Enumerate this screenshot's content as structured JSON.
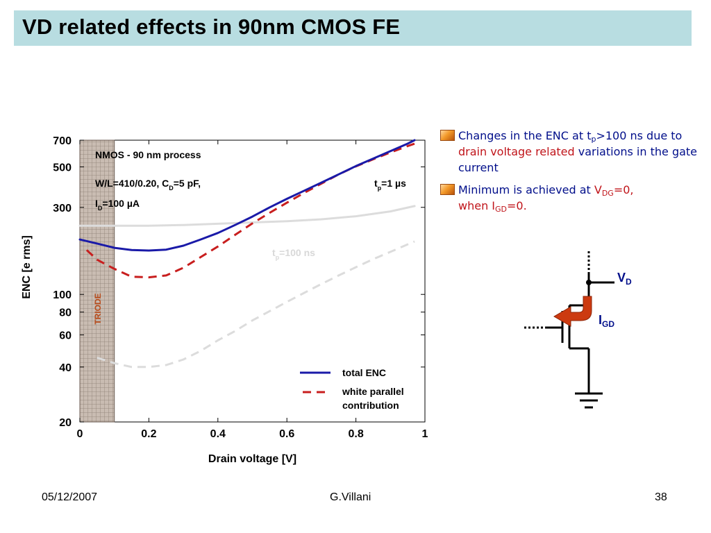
{
  "slide_title": "VD related effects in 90nm CMOS FE",
  "bullets": [
    {
      "p1": "Changes in the ENC at t",
      "p1_sub": "p",
      "p1_rest": ">100 ns due to ",
      "p1_red": "drain voltage related",
      "p1_tail": " variations in the gate current"
    },
    {
      "p1": "Minimum is achieved at ",
      "r1": "V",
      "r1_sub": "DG",
      "r1_rest": "=0,",
      "r2": "when I",
      "r2_sub": "GD",
      "r2_rest": "=0."
    }
  ],
  "chart_data": {
    "type": "line",
    "xlabel": "Drain voltage [V]",
    "ylabel": "ENC [e rms]",
    "xlim": [
      0,
      1
    ],
    "ylim": [
      20,
      700
    ],
    "yscale": "log",
    "x_ticks": [
      0,
      0.2,
      0.4,
      0.6,
      0.8,
      1
    ],
    "x_tick_labels": [
      "0",
      "0.2",
      "0.4",
      "0.6",
      "0.8",
      "1"
    ],
    "y_ticks": [
      20,
      40,
      60,
      80,
      100,
      300,
      500,
      700
    ],
    "y_tick_labels": [
      "20",
      "40",
      "60",
      "80",
      "100",
      "300",
      "500",
      "700"
    ],
    "annotations": {
      "process": "NMOS - 90 nm process",
      "params_a": "W/L=410/0.20, C",
      "params_a_sub": "D",
      "params_a_rest": "=5 pF,",
      "params_b": "I",
      "params_b_sub": "D",
      "params_b_rest": "=100 µA",
      "tp1_main": "t",
      "tp1_sub": "p",
      "tp1_rest": "=1 µs",
      "tp100_main": "t",
      "tp100_sub": "p",
      "tp100_rest": "=100 ns",
      "triode": "TRIODE"
    },
    "triode_region": [
      0,
      0.1
    ],
    "legend": [
      "total ENC",
      "white parallel",
      "contribution"
    ],
    "series": [
      {
        "name": "total ENC",
        "group": "tp=1us",
        "style": "solid",
        "color": "#1a1aa8",
        "x": [
          0,
          0.05,
          0.1,
          0.15,
          0.2,
          0.25,
          0.3,
          0.35,
          0.4,
          0.45,
          0.5,
          0.55,
          0.6,
          0.65,
          0.7,
          0.75,
          0.8,
          0.85,
          0.9,
          0.95,
          0.97
        ],
        "y": [
          200,
          190,
          180,
          175,
          174,
          176,
          185,
          200,
          217,
          240,
          267,
          300,
          334,
          370,
          410,
          455,
          505,
          555,
          610,
          670,
          700
        ]
      },
      {
        "name": "white parallel contribution",
        "group": "tp=1us",
        "style": "dashed",
        "color": "#c81e1e",
        "x": [
          0.02,
          0.05,
          0.1,
          0.15,
          0.2,
          0.25,
          0.3,
          0.35,
          0.4,
          0.45,
          0.5,
          0.55,
          0.6,
          0.65,
          0.7,
          0.75,
          0.8,
          0.85,
          0.9,
          0.95,
          0.97
        ],
        "y": [
          175,
          155,
          138,
          125,
          124,
          127,
          140,
          160,
          183,
          212,
          245,
          280,
          318,
          360,
          405,
          455,
          503,
          550,
          600,
          650,
          670
        ]
      },
      {
        "name": "total ENC",
        "group": "tp=100ns",
        "style": "solid",
        "color": "#dcdcdc",
        "x": [
          0.0,
          0.1,
          0.2,
          0.3,
          0.4,
          0.5,
          0.6,
          0.7,
          0.8,
          0.9,
          0.97
        ],
        "y": [
          238,
          238,
          238,
          240,
          244,
          248,
          252,
          258,
          268,
          285,
          305
        ]
      },
      {
        "name": "white parallel contribution",
        "group": "tp=100ns",
        "style": "dashed",
        "color": "#dcdcdc",
        "x": [
          0.05,
          0.1,
          0.15,
          0.2,
          0.25,
          0.3,
          0.35,
          0.4,
          0.45,
          0.5,
          0.55,
          0.6,
          0.65,
          0.7,
          0.75,
          0.8,
          0.85,
          0.9,
          0.95,
          0.97
        ],
        "y": [
          45,
          42,
          40,
          40,
          41,
          44,
          49,
          56,
          63,
          72,
          81,
          91,
          102,
          114,
          127,
          141,
          156,
          171,
          188,
          195
        ]
      }
    ]
  },
  "schematic": {
    "vd_main": "V",
    "vd_sub": "D",
    "igd_main": "I",
    "igd_sub": "GD"
  },
  "footer": {
    "date": "05/12/2007",
    "author": "G.Villani",
    "page": "38"
  }
}
